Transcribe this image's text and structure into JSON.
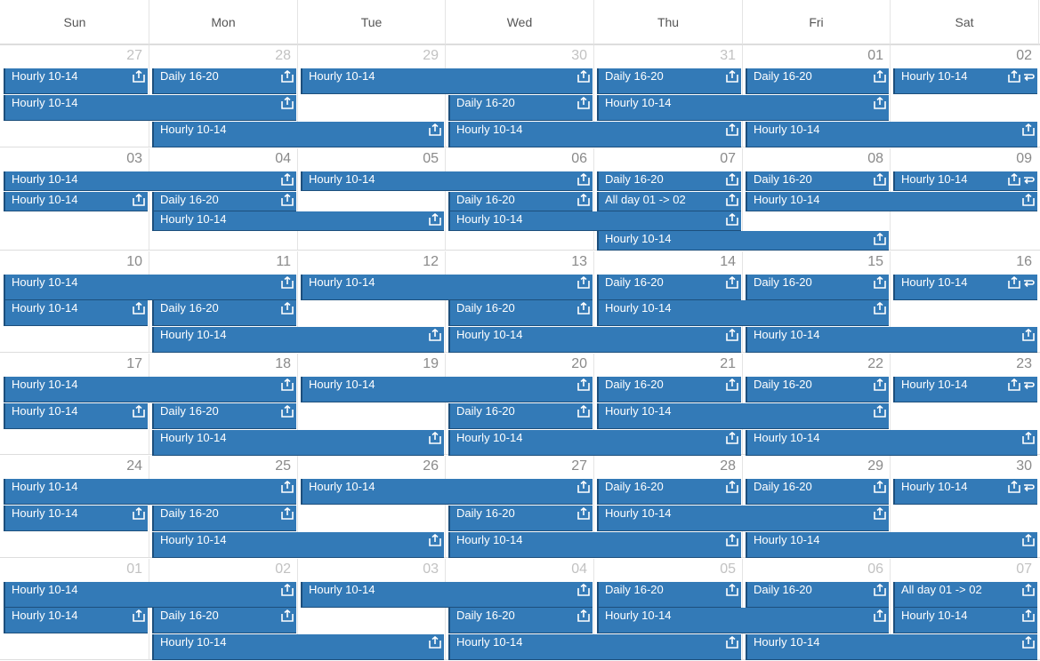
{
  "calendar": {
    "weekdays": [
      "Sun",
      "Mon",
      "Tue",
      "Wed",
      "Thu",
      "Fri",
      "Sat"
    ],
    "accent_color": "#337ab7",
    "weeks": [
      {
        "days": [
          {
            "n": "27",
            "other": true
          },
          {
            "n": "28",
            "other": true
          },
          {
            "n": "29",
            "other": true
          },
          {
            "n": "30",
            "other": true
          },
          {
            "n": "31",
            "other": true
          },
          {
            "n": "01"
          },
          {
            "n": "02"
          }
        ],
        "events": [
          {
            "label": "Hourly 10-14",
            "from": 0,
            "to": 0,
            "lane": 0,
            "icons": [
              "export-icon"
            ]
          },
          {
            "label": "Daily 16-20",
            "from": 1,
            "to": 1,
            "lane": 0,
            "icons": [
              "export-icon"
            ]
          },
          {
            "label": "Hourly 10-14",
            "from": 2,
            "to": 3,
            "lane": 0,
            "icons": [
              "export-icon"
            ]
          },
          {
            "label": "Daily 16-20",
            "from": 4,
            "to": 4,
            "lane": 0,
            "icons": [
              "export-icon"
            ]
          },
          {
            "label": "Daily 16-20",
            "from": 5,
            "to": 5,
            "lane": 0,
            "icons": [
              "export-icon"
            ]
          },
          {
            "label": "Hourly 10-14",
            "from": 6,
            "to": 6,
            "lane": 0,
            "icons": [
              "export-icon",
              "repeat-icon"
            ]
          },
          {
            "label": "Hourly 10-14",
            "from": 0,
            "to": 1,
            "lane": 1,
            "icons": [
              "export-icon"
            ]
          },
          {
            "label": "Daily 16-20",
            "from": 3,
            "to": 3,
            "lane": 1,
            "icons": [
              "export-icon"
            ]
          },
          {
            "label": "Hourly 10-14",
            "from": 4,
            "to": 5,
            "lane": 1,
            "icons": [
              "export-icon"
            ]
          },
          {
            "label": "Hourly 10-14",
            "from": 1,
            "to": 2,
            "lane": 2,
            "icons": [
              "export-icon"
            ]
          },
          {
            "label": "Hourly 10-14",
            "from": 3,
            "to": 4,
            "lane": 2,
            "icons": [
              "export-icon"
            ]
          },
          {
            "label": "Hourly 10-14",
            "from": 5,
            "to": 6,
            "lane": 2,
            "icons": [
              "export-icon"
            ]
          }
        ]
      },
      {
        "days": [
          {
            "n": "03"
          },
          {
            "n": "04"
          },
          {
            "n": "05"
          },
          {
            "n": "06"
          },
          {
            "n": "07"
          },
          {
            "n": "08"
          },
          {
            "n": "09"
          }
        ],
        "events": [
          {
            "label": "Hourly 10-14",
            "from": 0,
            "to": 1,
            "lane": 0,
            "icons": [
              "export-icon"
            ]
          },
          {
            "label": "Hourly 10-14",
            "from": 2,
            "to": 3,
            "lane": 0,
            "icons": [
              "export-icon"
            ]
          },
          {
            "label": "Daily 16-20",
            "from": 4,
            "to": 4,
            "lane": 0,
            "icons": [
              "export-icon"
            ]
          },
          {
            "label": "Daily 16-20",
            "from": 5,
            "to": 5,
            "lane": 0,
            "icons": [
              "export-icon"
            ]
          },
          {
            "label": "Hourly 10-14",
            "from": 6,
            "to": 6,
            "lane": 0,
            "icons": [
              "export-icon",
              "repeat-icon"
            ]
          },
          {
            "label": "Hourly 10-14",
            "from": 0,
            "to": 0,
            "lane": 1,
            "icons": [
              "export-icon"
            ]
          },
          {
            "label": "Daily 16-20",
            "from": 1,
            "to": 1,
            "lane": 1,
            "icons": [
              "export-icon"
            ]
          },
          {
            "label": "Daily 16-20",
            "from": 3,
            "to": 3,
            "lane": 1,
            "icons": [
              "export-icon"
            ]
          },
          {
            "label": "All day 01 -> 02",
            "from": 4,
            "to": 4,
            "lane": 1,
            "icons": [
              "export-icon"
            ]
          },
          {
            "label": "Hourly 10-14",
            "from": 5,
            "to": 6,
            "lane": 1,
            "icons": [
              "export-icon"
            ]
          },
          {
            "label": "Hourly 10-14",
            "from": 1,
            "to": 2,
            "lane": 2,
            "icons": [
              "export-icon"
            ]
          },
          {
            "label": "Hourly 10-14",
            "from": 3,
            "to": 4,
            "lane": 2,
            "icons": [
              "export-icon"
            ]
          },
          {
            "label": "Hourly 10-14",
            "from": 4,
            "to": 5,
            "lane": 3,
            "icons": [
              "export-icon"
            ]
          }
        ]
      },
      {
        "days": [
          {
            "n": "10"
          },
          {
            "n": "11"
          },
          {
            "n": "12"
          },
          {
            "n": "13"
          },
          {
            "n": "14"
          },
          {
            "n": "15"
          },
          {
            "n": "16"
          }
        ],
        "events": [
          {
            "label": "Hourly 10-14",
            "from": 0,
            "to": 1,
            "lane": 0,
            "icons": [
              "export-icon"
            ]
          },
          {
            "label": "Hourly 10-14",
            "from": 2,
            "to": 3,
            "lane": 0,
            "icons": [
              "export-icon"
            ]
          },
          {
            "label": "Daily 16-20",
            "from": 4,
            "to": 4,
            "lane": 0,
            "icons": [
              "export-icon"
            ]
          },
          {
            "label": "Daily 16-20",
            "from": 5,
            "to": 5,
            "lane": 0,
            "icons": [
              "export-icon"
            ]
          },
          {
            "label": "Hourly 10-14",
            "from": 6,
            "to": 6,
            "lane": 0,
            "icons": [
              "export-icon",
              "repeat-icon"
            ]
          },
          {
            "label": "Hourly 10-14",
            "from": 0,
            "to": 0,
            "lane": 1,
            "icons": [
              "export-icon"
            ]
          },
          {
            "label": "Daily 16-20",
            "from": 1,
            "to": 1,
            "lane": 1,
            "icons": [
              "export-icon"
            ]
          },
          {
            "label": "Daily 16-20",
            "from": 3,
            "to": 3,
            "lane": 1,
            "icons": [
              "export-icon"
            ]
          },
          {
            "label": "Hourly 10-14",
            "from": 4,
            "to": 5,
            "lane": 1,
            "icons": [
              "export-icon"
            ]
          },
          {
            "label": "Hourly 10-14",
            "from": 1,
            "to": 2,
            "lane": 2,
            "icons": [
              "export-icon"
            ]
          },
          {
            "label": "Hourly 10-14",
            "from": 3,
            "to": 4,
            "lane": 2,
            "icons": [
              "export-icon"
            ]
          },
          {
            "label": "Hourly 10-14",
            "from": 5,
            "to": 6,
            "lane": 2,
            "icons": [
              "export-icon"
            ]
          }
        ]
      },
      {
        "days": [
          {
            "n": "17"
          },
          {
            "n": "18"
          },
          {
            "n": "19"
          },
          {
            "n": "20"
          },
          {
            "n": "21"
          },
          {
            "n": "22"
          },
          {
            "n": "23"
          }
        ],
        "events": [
          {
            "label": "Hourly 10-14",
            "from": 0,
            "to": 1,
            "lane": 0,
            "icons": [
              "export-icon"
            ]
          },
          {
            "label": "Hourly 10-14",
            "from": 2,
            "to": 3,
            "lane": 0,
            "icons": [
              "export-icon"
            ]
          },
          {
            "label": "Daily 16-20",
            "from": 4,
            "to": 4,
            "lane": 0,
            "icons": [
              "export-icon"
            ]
          },
          {
            "label": "Daily 16-20",
            "from": 5,
            "to": 5,
            "lane": 0,
            "icons": [
              "export-icon"
            ]
          },
          {
            "label": "Hourly 10-14",
            "from": 6,
            "to": 6,
            "lane": 0,
            "icons": [
              "export-icon",
              "repeat-icon"
            ]
          },
          {
            "label": "Hourly 10-14",
            "from": 0,
            "to": 0,
            "lane": 1,
            "icons": [
              "export-icon"
            ]
          },
          {
            "label": "Daily 16-20",
            "from": 1,
            "to": 1,
            "lane": 1,
            "icons": [
              "export-icon"
            ]
          },
          {
            "label": "Daily 16-20",
            "from": 3,
            "to": 3,
            "lane": 1,
            "icons": [
              "export-icon"
            ]
          },
          {
            "label": "Hourly 10-14",
            "from": 4,
            "to": 5,
            "lane": 1,
            "icons": [
              "export-icon"
            ]
          },
          {
            "label": "Hourly 10-14",
            "from": 1,
            "to": 2,
            "lane": 2,
            "icons": [
              "export-icon"
            ]
          },
          {
            "label": "Hourly 10-14",
            "from": 3,
            "to": 4,
            "lane": 2,
            "icons": [
              "export-icon"
            ]
          },
          {
            "label": "Hourly 10-14",
            "from": 5,
            "to": 6,
            "lane": 2,
            "icons": [
              "export-icon"
            ]
          }
        ]
      },
      {
        "days": [
          {
            "n": "24"
          },
          {
            "n": "25"
          },
          {
            "n": "26"
          },
          {
            "n": "27"
          },
          {
            "n": "28"
          },
          {
            "n": "29"
          },
          {
            "n": "30"
          }
        ],
        "events": [
          {
            "label": "Hourly 10-14",
            "from": 0,
            "to": 1,
            "lane": 0,
            "icons": [
              "export-icon"
            ]
          },
          {
            "label": "Hourly 10-14",
            "from": 2,
            "to": 3,
            "lane": 0,
            "icons": [
              "export-icon"
            ]
          },
          {
            "label": "Daily 16-20",
            "from": 4,
            "to": 4,
            "lane": 0,
            "icons": [
              "export-icon"
            ]
          },
          {
            "label": "Daily 16-20",
            "from": 5,
            "to": 5,
            "lane": 0,
            "icons": [
              "export-icon"
            ]
          },
          {
            "label": "Hourly 10-14",
            "from": 6,
            "to": 6,
            "lane": 0,
            "icons": [
              "export-icon",
              "repeat-icon"
            ]
          },
          {
            "label": "Hourly 10-14",
            "from": 0,
            "to": 0,
            "lane": 1,
            "icons": [
              "export-icon"
            ]
          },
          {
            "label": "Daily 16-20",
            "from": 1,
            "to": 1,
            "lane": 1,
            "icons": [
              "export-icon"
            ]
          },
          {
            "label": "Daily 16-20",
            "from": 3,
            "to": 3,
            "lane": 1,
            "icons": [
              "export-icon"
            ]
          },
          {
            "label": "Hourly 10-14",
            "from": 4,
            "to": 5,
            "lane": 1,
            "icons": [
              "export-icon"
            ]
          },
          {
            "label": "Hourly 10-14",
            "from": 1,
            "to": 2,
            "lane": 2,
            "icons": [
              "export-icon"
            ]
          },
          {
            "label": "Hourly 10-14",
            "from": 3,
            "to": 4,
            "lane": 2,
            "icons": [
              "export-icon"
            ]
          },
          {
            "label": "Hourly 10-14",
            "from": 5,
            "to": 6,
            "lane": 2,
            "icons": [
              "export-icon"
            ]
          }
        ]
      },
      {
        "days": [
          {
            "n": "01",
            "other": true
          },
          {
            "n": "02",
            "other": true
          },
          {
            "n": "03",
            "other": true
          },
          {
            "n": "04",
            "other": true
          },
          {
            "n": "05",
            "other": true
          },
          {
            "n": "06",
            "other": true
          },
          {
            "n": "07",
            "other": true
          }
        ],
        "events": [
          {
            "label": "Hourly 10-14",
            "from": 0,
            "to": 1,
            "lane": 0,
            "icons": [
              "export-icon"
            ]
          },
          {
            "label": "Hourly 10-14",
            "from": 2,
            "to": 3,
            "lane": 0,
            "icons": [
              "export-icon"
            ]
          },
          {
            "label": "Daily 16-20",
            "from": 4,
            "to": 4,
            "lane": 0,
            "icons": [
              "export-icon"
            ]
          },
          {
            "label": "Daily 16-20",
            "from": 5,
            "to": 5,
            "lane": 0,
            "icons": [
              "export-icon"
            ]
          },
          {
            "label": "All day 01 -> 02",
            "from": 6,
            "to": 6,
            "lane": 0,
            "icons": [
              "export-icon"
            ]
          },
          {
            "label": "Hourly 10-14",
            "from": 0,
            "to": 0,
            "lane": 1,
            "icons": [
              "export-icon"
            ]
          },
          {
            "label": "Daily 16-20",
            "from": 1,
            "to": 1,
            "lane": 1,
            "icons": [
              "export-icon"
            ]
          },
          {
            "label": "Daily 16-20",
            "from": 3,
            "to": 3,
            "lane": 1,
            "icons": [
              "export-icon"
            ]
          },
          {
            "label": "Hourly 10-14",
            "from": 4,
            "to": 5,
            "lane": 1,
            "icons": [
              "export-icon"
            ]
          },
          {
            "label": "Hourly 10-14",
            "from": 6,
            "to": 6,
            "lane": 1,
            "icons": [
              "export-icon"
            ]
          },
          {
            "label": "Hourly 10-14",
            "from": 1,
            "to": 2,
            "lane": 2,
            "icons": [
              "export-icon"
            ]
          },
          {
            "label": "Hourly 10-14",
            "from": 3,
            "to": 4,
            "lane": 2,
            "icons": [
              "export-icon"
            ]
          },
          {
            "label": "Hourly 10-14",
            "from": 5,
            "to": 6,
            "lane": 2,
            "icons": [
              "export-icon"
            ]
          }
        ]
      }
    ]
  }
}
